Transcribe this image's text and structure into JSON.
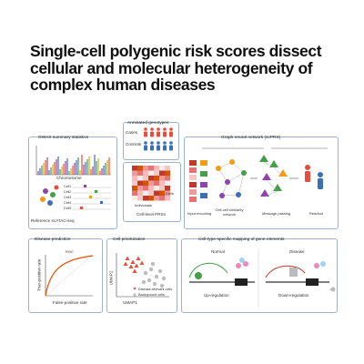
{
  "title": {
    "line1": "Single-cell polygenic risk scores dissect",
    "line2": "cellular and molecular heterogeneity of",
    "line3": "complex human diseases"
  },
  "panels": {
    "gwas": {
      "header": "GWAS summary statistics",
      "chrom_label": "Chromosome",
      "footer": "Reference scATAC-seq",
      "cells": [
        "Cell1",
        "Cell2",
        "Cell3",
        "Cell4",
        "Cell5"
      ]
    },
    "samples": {
      "header": "Annotated genotypes",
      "cases": "Cases",
      "controls": "Controls"
    },
    "matrix": {
      "footer": "Cell-level PRSs",
      "rows_label": "Individuals",
      "cols_label": "Cells"
    },
    "gnn": {
      "header": "Graph neural network (scPRS)",
      "sublabels": [
        "Input encoding",
        "Cell-cell similarity network",
        "Message passing",
        "Readout"
      ]
    },
    "disease": {
      "header": "Disease prediction",
      "inner_title": "ROC",
      "xlabel": "False-positive rate",
      "ylabel": "True-positive rate"
    },
    "cells": {
      "header": "Cell prioritization",
      "xlabel": "UMAP1",
      "ylabel": "UMAP2",
      "legend": [
        "Disease-relevant cells",
        "Background cells"
      ]
    },
    "genes": {
      "header": "Cell-type-specific mapping of gene elements",
      "normal": "Normal",
      "disease_state": "Disease",
      "left_caption": "Up-regulation",
      "right_caption": "Down-regulation"
    }
  },
  "colors": {
    "panel_border": "#9fb3c8",
    "heat_dark": "#c0392b",
    "heat_light": "#f5c6c6",
    "case_red": "#e74c3c",
    "control_blue": "#3b6fb6",
    "node_purple": "#8e44ad",
    "node_green": "#43a047",
    "node_orange": "#f39c12"
  }
}
